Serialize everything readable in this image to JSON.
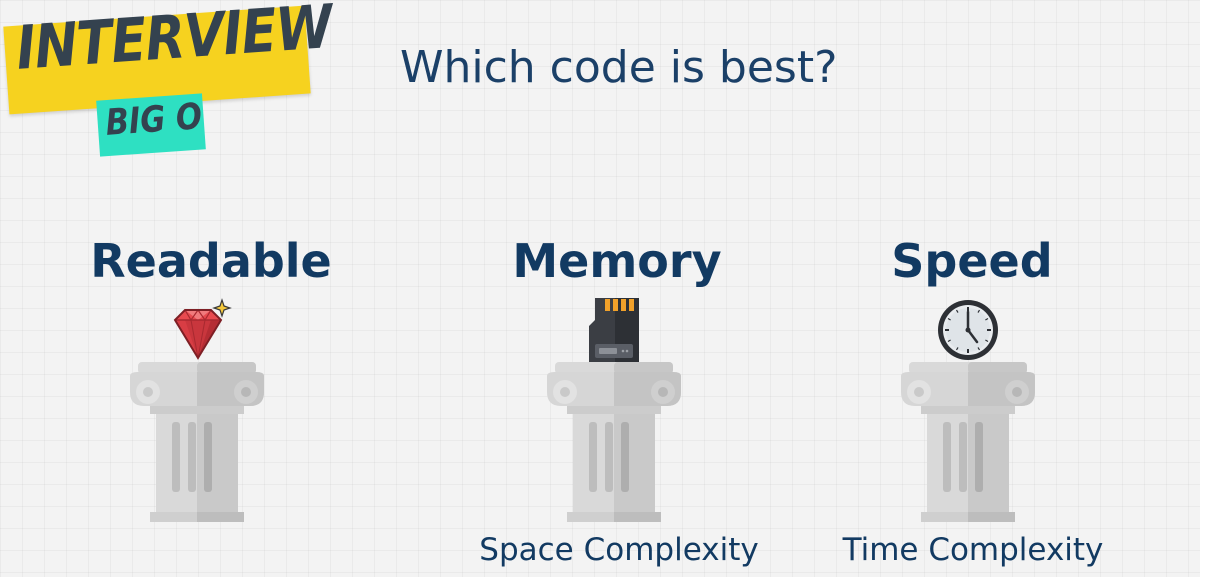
{
  "badge": {
    "main": "INTERVIEW",
    "sub": "BIG O"
  },
  "title": "Which code is best?",
  "pillars": [
    {
      "label": "Readable",
      "subtitle": "",
      "icon": "gem-icon"
    },
    {
      "label": "Memory",
      "subtitle": "Space Complexity",
      "icon": "memory-card-icon"
    },
    {
      "label": "Speed",
      "subtitle": "Time Complexity",
      "icon": "clock-icon"
    }
  ],
  "colors": {
    "heading": "#123a62",
    "badge_yellow": "#f6d21f",
    "badge_teal": "#2ee0c2",
    "badge_text": "#34424f"
  }
}
